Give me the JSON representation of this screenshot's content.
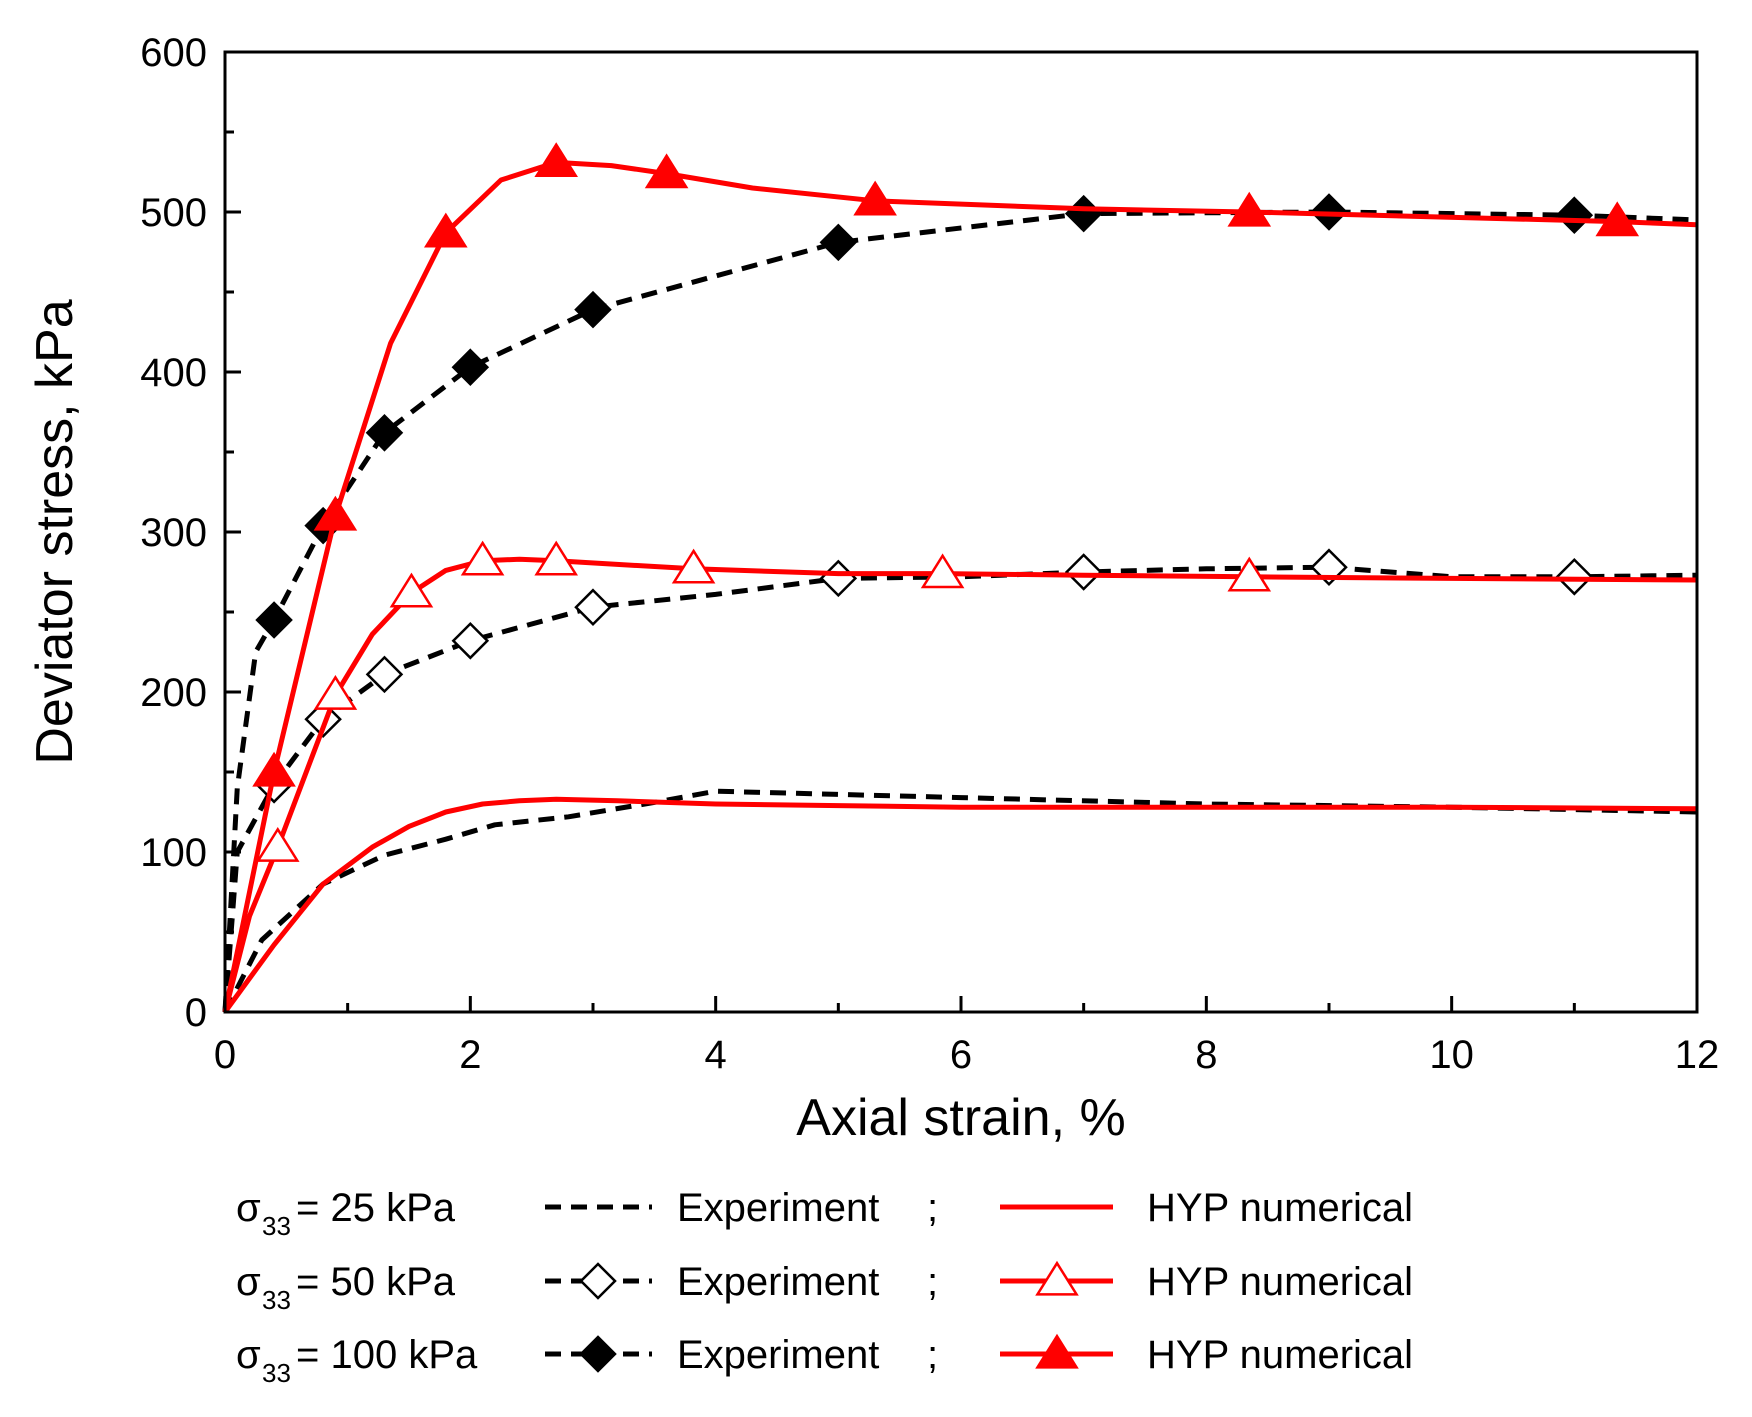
{
  "chart_data": {
    "type": "line",
    "title": "",
    "xlabel": "Axial strain, %",
    "ylabel": "Deviator stress, kPa",
    "xlim": [
      0,
      12
    ],
    "ylim": [
      0,
      600
    ],
    "xticks": [
      0,
      2,
      4,
      6,
      8,
      10,
      12
    ],
    "yticks": [
      0,
      100,
      200,
      300,
      400,
      500,
      600
    ],
    "grid": false,
    "legend_position": "bottom",
    "colors": {
      "experiment": "#000000",
      "numerical": "#ff0000"
    },
    "series": [
      {
        "name": "Experiment σ33 = 25 kPa",
        "kind": "experiment",
        "color": "#000000",
        "line": "dashed",
        "marker": "none",
        "x": [
          0,
          0.3,
          0.8,
          1.3,
          1.8,
          2.2,
          2.8,
          3.5,
          4.0,
          5.0,
          6.0,
          8.0,
          10.0,
          12.0
        ],
        "y": [
          0,
          45,
          80,
          98,
          108,
          117,
          122,
          131,
          138,
          136,
          134,
          130,
          128,
          125
        ]
      },
      {
        "name": "HYP numerical σ33 = 25 kPa",
        "kind": "numerical",
        "color": "#ff0000",
        "line": "solid",
        "marker": "none",
        "x": [
          0,
          0.4,
          0.8,
          1.2,
          1.5,
          1.8,
          2.1,
          2.4,
          2.7,
          3.2,
          4.0,
          5.0,
          6.0,
          8.0,
          10.0,
          12.0
        ],
        "y": [
          0,
          42,
          80,
          103,
          116,
          125,
          130,
          132,
          133,
          132,
          130,
          129,
          128,
          128,
          128,
          127
        ]
      },
      {
        "name": "Experiment σ33 = 50 kPa",
        "kind": "experiment",
        "color": "#000000",
        "line": "dashed",
        "marker": "diamond-open",
        "x": [
          0,
          0.1,
          0.4,
          0.8,
          1.3,
          2.0,
          3.0,
          4.0,
          5.0,
          6.0,
          7.0,
          8.0,
          9.0,
          10.0,
          11.0,
          12.0
        ],
        "y": [
          0,
          100,
          142,
          183,
          211,
          232,
          253,
          261,
          271,
          272,
          275,
          277,
          278,
          272,
          272,
          273
        ],
        "marker_index": [
          2,
          3,
          4,
          5,
          6,
          8,
          10,
          12,
          14
        ]
      },
      {
        "name": "HYP numerical σ33 = 50 kPa",
        "kind": "numerical",
        "color": "#ff0000",
        "line": "solid",
        "marker": "triangle-open",
        "x": [
          0,
          0.2,
          0.43,
          0.9,
          1.2,
          1.52,
          1.8,
          2.1,
          2.4,
          2.7,
          3.82,
          5.0,
          5.85,
          7.0,
          8.35,
          10.0,
          12.0
        ],
        "y": [
          0,
          60,
          103,
          198,
          236,
          262,
          276,
          282,
          283,
          282,
          277,
          274,
          274,
          273,
          272,
          271,
          270
        ],
        "marker_index": [
          2,
          3,
          5,
          7,
          9,
          10,
          12,
          14
        ]
      },
      {
        "name": "Experiment σ33 = 100 kPa",
        "kind": "experiment",
        "color": "#000000",
        "line": "dashed",
        "marker": "diamond-filled",
        "x": [
          0,
          0.1,
          0.25,
          0.4,
          0.8,
          1.3,
          2.0,
          3.0,
          5.0,
          7.0,
          9.0,
          11.0,
          12.0
        ],
        "y": [
          0,
          140,
          225,
          245,
          304,
          362,
          403,
          439,
          481,
          499,
          500,
          498,
          495
        ],
        "marker_index": [
          3,
          4,
          5,
          6,
          7,
          8,
          9,
          10,
          11
        ]
      },
      {
        "name": "HYP numerical σ33 = 100 kPa",
        "kind": "numerical",
        "color": "#ff0000",
        "line": "solid",
        "marker": "triangle-filled",
        "x": [
          0,
          0.4,
          0.9,
          1.35,
          1.8,
          2.25,
          2.7,
          3.15,
          3.6,
          4.3,
          5.3,
          7.0,
          8.35,
          11.35,
          12.0
        ],
        "y": [
          0,
          150,
          310,
          418,
          487,
          520,
          531,
          529,
          524,
          515,
          507,
          502,
          500,
          494,
          492
        ],
        "marker_index": [
          1,
          2,
          4,
          6,
          8,
          10,
          12,
          13
        ]
      }
    ],
    "legend": {
      "rows": [
        {
          "sigma_symbol": "σ",
          "sigma_sub": "33",
          "pressure": "= 25 kPa",
          "exp_label": "Experiment",
          "sep": ";",
          "num_label": "HYP numerical",
          "exp_marker": "none",
          "num_marker": "none"
        },
        {
          "sigma_symbol": "σ",
          "sigma_sub": "33",
          "pressure": "= 50 kPa",
          "exp_label": "Experiment",
          "sep": ";",
          "num_label": "HYP numerical",
          "exp_marker": "diamond-open",
          "num_marker": "triangle-open"
        },
        {
          "sigma_symbol": "σ",
          "sigma_sub": "33",
          "pressure": "= 100 kPa",
          "exp_label": "Experiment",
          "sep": ";",
          "num_label": "HYP numerical",
          "exp_marker": "diamond-filled",
          "num_marker": "triangle-filled"
        }
      ]
    }
  }
}
